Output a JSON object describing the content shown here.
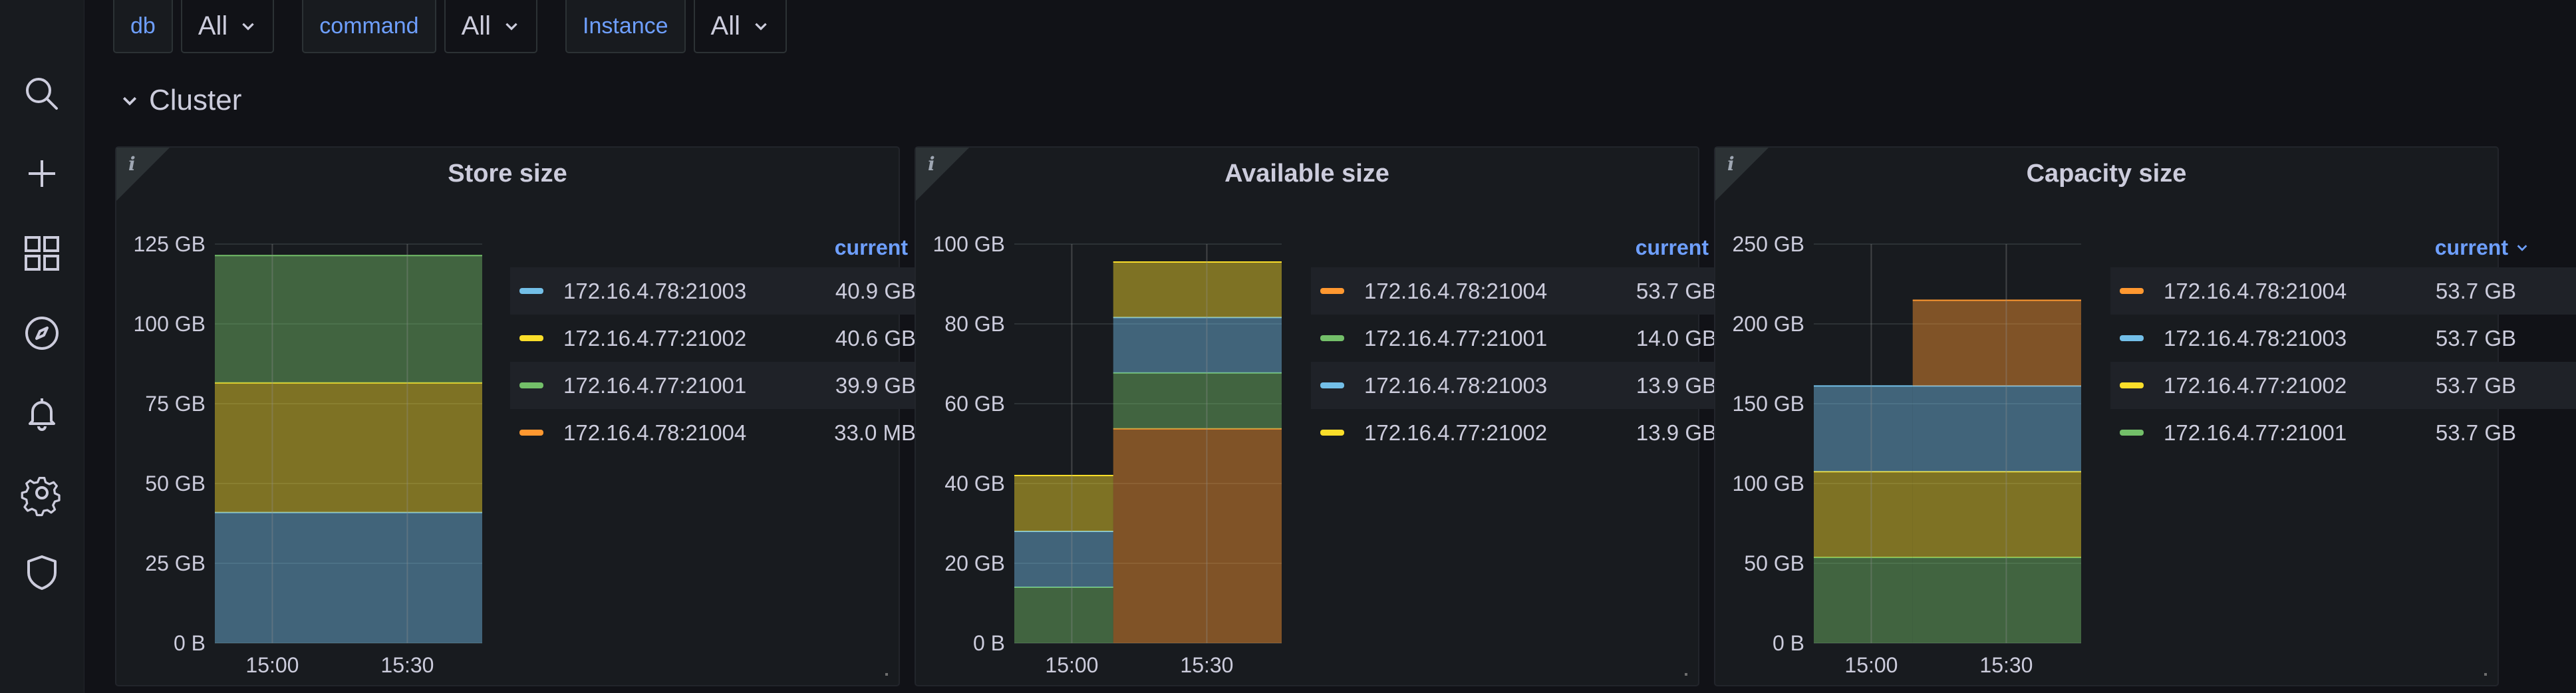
{
  "sidebar": {
    "items": [
      {
        "icon": "search-icon"
      },
      {
        "icon": "plus-icon"
      },
      {
        "icon": "dashboards-icon"
      },
      {
        "icon": "compass-icon"
      },
      {
        "icon": "bell-icon"
      },
      {
        "icon": "gear-icon"
      },
      {
        "icon": "shield-icon"
      }
    ]
  },
  "variables": [
    {
      "label": "db",
      "value": "All"
    },
    {
      "label": "command",
      "value": "All"
    },
    {
      "label": "Instance",
      "value": "All"
    }
  ],
  "row": {
    "title": "Cluster"
  },
  "colors": {
    "orange": "#ff9830",
    "cyan": "#73bfe8",
    "yellow": "#fade2a",
    "green": "#73bf69"
  },
  "panels": [
    {
      "title": "Store size",
      "info": "i",
      "legend_header": "current",
      "legend": [
        {
          "name": "172.16.4.78:21003",
          "value": "40.9 GB",
          "color": "#73bfe8"
        },
        {
          "name": "172.16.4.77:21002",
          "value": "40.6 GB",
          "color": "#fade2a"
        },
        {
          "name": "172.16.4.77:21001",
          "value": "39.9 GB",
          "color": "#73bf69"
        },
        {
          "name": "172.16.4.78:21004",
          "value": "33.0 MB",
          "color": "#ff9830"
        }
      ],
      "chart_data": {
        "type": "area",
        "stacked": true,
        "x_ticks": [
          "15:00",
          "15:30"
        ],
        "y_ticks": [
          "0 B",
          "25 GB",
          "50 GB",
          "75 GB",
          "100 GB",
          "125 GB"
        ],
        "ylim": [
          0,
          125
        ],
        "y_unit": "GB",
        "segments": [
          {
            "x_start": 0.0,
            "x_end": 1.0,
            "stack": [
              {
                "series": "172.16.4.78:21003",
                "value": 40.9,
                "color": "#73bfe8"
              },
              {
                "series": "172.16.4.77:21002",
                "value": 40.6,
                "color": "#fade2a"
              },
              {
                "series": "172.16.4.77:21001",
                "value": 39.9,
                "color": "#73bf69"
              }
            ]
          }
        ]
      }
    },
    {
      "title": "Available size",
      "info": "i",
      "legend_header": "current",
      "legend": [
        {
          "name": "172.16.4.78:21004",
          "value": "53.7 GB",
          "color": "#ff9830"
        },
        {
          "name": "172.16.4.77:21001",
          "value": "14.0 GB",
          "color": "#73bf69"
        },
        {
          "name": "172.16.4.78:21003",
          "value": "13.9 GB",
          "color": "#73bfe8"
        },
        {
          "name": "172.16.4.77:21002",
          "value": "13.9 GB",
          "color": "#fade2a"
        }
      ],
      "chart_data": {
        "type": "area",
        "stacked": true,
        "x_ticks": [
          "15:00",
          "15:30"
        ],
        "y_ticks": [
          "0 B",
          "20 GB",
          "40 GB",
          "60 GB",
          "80 GB",
          "100 GB"
        ],
        "ylim": [
          0,
          100
        ],
        "y_unit": "GB",
        "segments": [
          {
            "x_start": 0.0,
            "x_end": 0.37,
            "stack": [
              {
                "series": "172.16.4.77:21001",
                "value": 14.0,
                "color": "#73bf69"
              },
              {
                "series": "172.16.4.78:21003",
                "value": 14.0,
                "color": "#73bfe8"
              },
              {
                "series": "172.16.4.77:21002",
                "value": 14.0,
                "color": "#fade2a"
              }
            ]
          },
          {
            "x_start": 0.37,
            "x_end": 1.0,
            "stack": [
              {
                "series": "172.16.4.78:21004",
                "value": 53.7,
                "color": "#ff9830"
              },
              {
                "series": "172.16.4.77:21001",
                "value": 14.0,
                "color": "#73bf69"
              },
              {
                "series": "172.16.4.78:21003",
                "value": 13.9,
                "color": "#73bfe8"
              },
              {
                "series": "172.16.4.77:21002",
                "value": 13.9,
                "color": "#fade2a"
              }
            ]
          }
        ]
      }
    },
    {
      "title": "Capacity size",
      "info": "i",
      "legend_header": "current",
      "legend": [
        {
          "name": "172.16.4.78:21004",
          "value": "53.7 GB",
          "color": "#ff9830"
        },
        {
          "name": "172.16.4.78:21003",
          "value": "53.7 GB",
          "color": "#73bfe8"
        },
        {
          "name": "172.16.4.77:21002",
          "value": "53.7 GB",
          "color": "#fade2a"
        },
        {
          "name": "172.16.4.77:21001",
          "value": "53.7 GB",
          "color": "#73bf69"
        }
      ],
      "chart_data": {
        "type": "area",
        "stacked": true,
        "x_ticks": [
          "15:00",
          "15:30"
        ],
        "y_ticks": [
          "0 B",
          "50 GB",
          "100 GB",
          "150 GB",
          "200 GB",
          "250 GB"
        ],
        "ylim": [
          0,
          250
        ],
        "y_unit": "GB",
        "segments": [
          {
            "x_start": 0.0,
            "x_end": 0.37,
            "stack": [
              {
                "series": "172.16.4.77:21001",
                "value": 53.7,
                "color": "#73bf69"
              },
              {
                "series": "172.16.4.77:21002",
                "value": 53.7,
                "color": "#fade2a"
              },
              {
                "series": "172.16.4.78:21003",
                "value": 53.7,
                "color": "#73bfe8"
              }
            ]
          },
          {
            "x_start": 0.37,
            "x_end": 1.0,
            "stack": [
              {
                "series": "172.16.4.77:21001",
                "value": 53.7,
                "color": "#73bf69"
              },
              {
                "series": "172.16.4.77:21002",
                "value": 53.7,
                "color": "#fade2a"
              },
              {
                "series": "172.16.4.78:21003",
                "value": 53.7,
                "color": "#73bfe8"
              },
              {
                "series": "172.16.4.78:21004",
                "value": 53.7,
                "color": "#ff9830"
              }
            ]
          }
        ]
      }
    }
  ]
}
